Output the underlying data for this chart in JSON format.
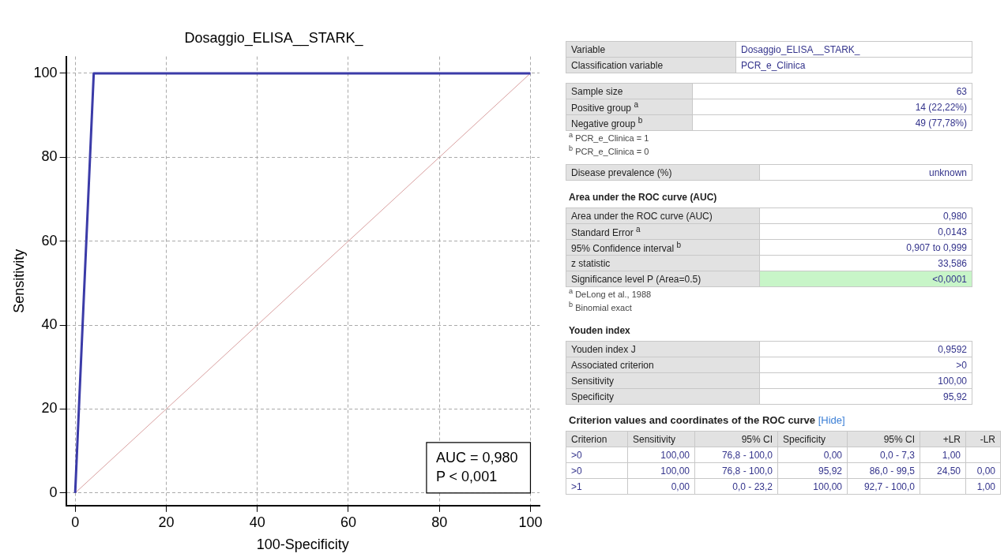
{
  "chart_data": [
    {
      "type": "line",
      "title": "Dosaggio_ELISA__STARK_",
      "xlabel": "100-Specificity",
      "ylabel": "Sensitivity",
      "series": [
        {
          "color": "#3b3ba8",
          "x": [
            0,
            4.08,
            100
          ],
          "values": [
            0,
            100,
            100
          ]
        },
        {
          "color": "#d9a0a0",
          "x": [
            0,
            100
          ],
          "values": [
            0,
            100
          ]
        }
      ],
      "xlim": [
        -2,
        102
      ],
      "ylim": [
        -3,
        104
      ],
      "xticks": [
        0,
        20,
        40,
        60,
        80,
        100
      ],
      "yticks": [
        0,
        20,
        40,
        60,
        80,
        100
      ],
      "grid": true,
      "legend": false,
      "marker": "none",
      "annotations": [
        "AUC = 0,980",
        "P < 0,001"
      ]
    },
    {
      "type": "other",
      "annotations": [
        "Variable",
        "Dosaggio_ELISA__STARK_",
        "Classification variable",
        "PCR_e_Clinica",
        "Sample size",
        "63",
        "Positive group $^{a}$",
        "14 (22,22%)",
        "Negative group $^{b}$",
        "49 (77,78%)",
        "$^{a}$ PCR_e_Clinica = 1",
        "$^{b}$ PCR_e_Clinica = 0",
        "Disease prevalence (%)",
        "unknown",
        "Area under the ROC curve (AUC)",
        "Area under the ROC curve (AUC)",
        "0,980",
        "Standard Error $^{a}$",
        "0,0143",
        "95% Confidence interval $^{b}$",
        "0,907 to 0,999",
        "z statistic",
        "33,586",
        "Significance level P (Area=0.5)",
        "<0,0001",
        "$^{a}$ DeLong et al., 1988",
        "$^{b}$ Binomial exact",
        "Youden index",
        "Youden index J",
        "0,9592",
        "Associated criterion",
        ">0",
        "Sensitivity",
        "100,00",
        "Specificity",
        "95,92",
        "Criterion values and coordinates of the ROC curve",
        "[Hide]",
        "Criterion",
        "Sensitivity",
        "95% CI",
        "Specificity",
        "95% CI",
        "+LR",
        "-LR",
        ">0",
        "100,00",
        "76,8 - 100,0",
        "0,00",
        "0,0 - 7,3",
        "1,00",
        ">0",
        "100,00",
        "76,8 - 100,0",
        "95,92",
        "86,0 - 99,5",
        "24,50",
        "0,00",
        ">1",
        "0,00",
        "0,0 - 23,2",
        "100,00",
        "92,7 - 100,0",
        "1,00"
      ]
    }
  ]
}
